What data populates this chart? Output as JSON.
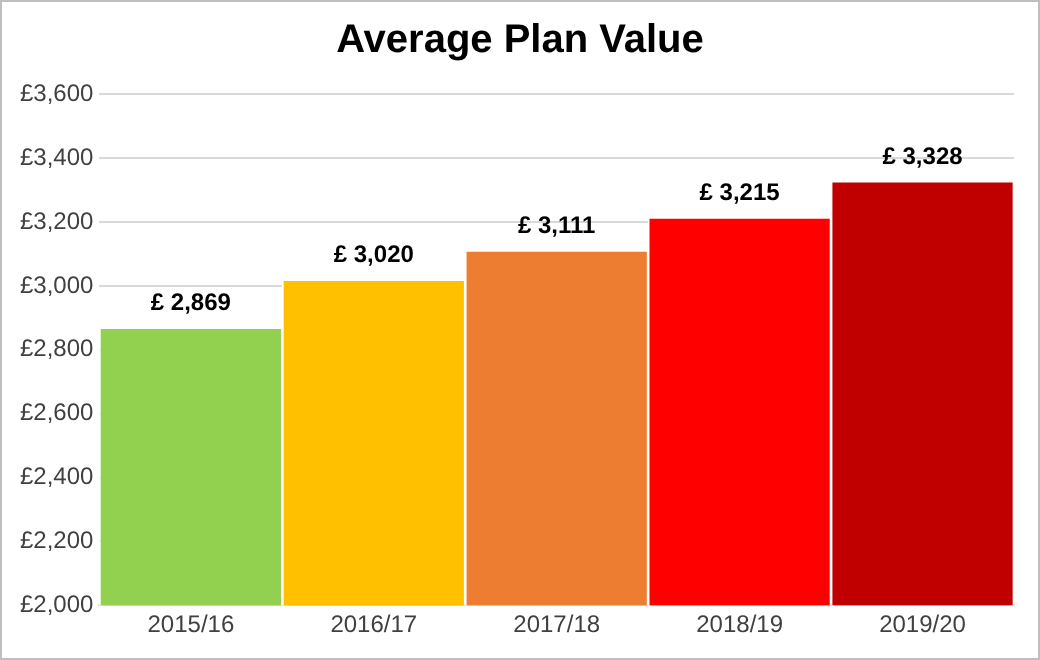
{
  "chart_data": {
    "type": "bar",
    "title": "Average Plan Value",
    "categories": [
      "2015/16",
      "2016/17",
      "2017/18",
      "2018/19",
      "2019/20"
    ],
    "values": [
      2869,
      3020,
      3111,
      3215,
      3328
    ],
    "colors": [
      "#92d050",
      "#ffc000",
      "#ed7d31",
      "#ff0000",
      "#c00000"
    ],
    "value_labels": [
      "£ 2,869",
      "£ 3,020",
      "£ 3,111",
      "£ 3,215",
      "£ 3,328"
    ],
    "ylim": [
      2000,
      3600
    ],
    "yticks": [
      {
        "value": 2000,
        "label": "£2,000"
      },
      {
        "value": 2200,
        "label": "£2,200"
      },
      {
        "value": 2400,
        "label": "£2,400"
      },
      {
        "value": 2600,
        "label": "£2,600"
      },
      {
        "value": 2800,
        "label": "£2,800"
      },
      {
        "value": 3000,
        "label": "£3,000"
      },
      {
        "value": 3200,
        "label": "£3,200"
      },
      {
        "value": 3400,
        "label": "£3,400"
      },
      {
        "value": 3600,
        "label": "£3,600"
      }
    ],
    "grid": "y",
    "legend": false
  }
}
